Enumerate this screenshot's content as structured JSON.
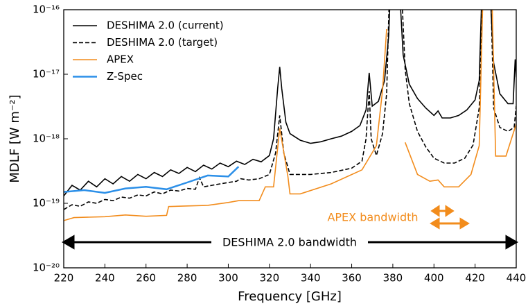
{
  "chart_data": {
    "type": "line",
    "xlabel": "Frequency [GHz]",
    "ylabel": "MDLF [W m⁻²]",
    "xlim": [
      220,
      440
    ],
    "xticks": [
      220,
      240,
      260,
      280,
      300,
      320,
      340,
      360,
      380,
      400,
      420,
      440
    ],
    "ylim": [
      1e-20,
      1e-16
    ],
    "yscale": "log",
    "yticks": [
      {
        "value": 1e-20,
        "label": "10⁻²⁰"
      },
      {
        "value": 1e-19,
        "label": "10⁻¹⁹"
      },
      {
        "value": 1e-18,
        "label": "10⁻¹⁸"
      },
      {
        "value": 1e-17,
        "label": "10⁻¹⁷"
      },
      {
        "value": 1e-16,
        "label": "10⁻¹⁶"
      }
    ],
    "legend": "upper left",
    "annotations": [
      "APEX bandwidth",
      "DESHIMA 2.0 bandwidth"
    ],
    "series": [
      {
        "name": "DESHIMA 2.0 (current)",
        "color": "#000000",
        "dash": "solid",
        "x": [
          220,
          224,
          228,
          232,
          236,
          240,
          244,
          248,
          252,
          256,
          260,
          264,
          268,
          272,
          276,
          280,
          284,
          288,
          292,
          296,
          300,
          304,
          308,
          312,
          316,
          320,
          322,
          324,
          325,
          326,
          328,
          330,
          335,
          340,
          345,
          350,
          355,
          360,
          364,
          367,
          368.5,
          370,
          373,
          376,
          378,
          379,
          383,
          385,
          388,
          392,
          396,
          400,
          402,
          404,
          408,
          412,
          416,
          420,
          422,
          423.5,
          427,
          429,
          432,
          436,
          438.5,
          439.5,
          440
        ],
        "values": [
          1.3e-19,
          1.9e-19,
          1.6e-19,
          2.2e-19,
          1.8e-19,
          2.4e-19,
          2e-19,
          2.6e-19,
          2.2e-19,
          2.8e-19,
          2.4e-19,
          3e-19,
          2.6e-19,
          3.3e-19,
          2.9e-19,
          3.6e-19,
          3.1e-19,
          3.9e-19,
          3.4e-19,
          4.2e-19,
          3.7e-19,
          4.5e-19,
          4e-19,
          4.8e-19,
          4.4e-19,
          5.5e-19,
          1e-18,
          6e-18,
          1.3e-17,
          6e-18,
          1.8e-18,
          1.2e-18,
          9.5e-19,
          8.5e-19,
          9e-19,
          1e-18,
          1.1e-18,
          1.3e-18,
          1.6e-18,
          2.8e-18,
          1.05e-17,
          3.2e-18,
          3.8e-18,
          8e-18,
          4e-17,
          3e-16,
          3e-16,
          2e-17,
          7e-18,
          4.2e-18,
          3e-18,
          2.3e-18,
          2.7e-18,
          2.1e-18,
          2.1e-18,
          2.3e-18,
          2.8e-18,
          4e-18,
          8e-18,
          3e-16,
          3e-16,
          1.5e-17,
          5e-18,
          3.5e-18,
          3.5e-18,
          1.7e-17,
          9e-18
        ]
      },
      {
        "name": "DESHIMA 2.0 (target)",
        "color": "#000000",
        "dash": "dashed",
        "x": [
          220,
          224,
          228,
          232,
          236,
          240,
          244,
          248,
          252,
          256,
          260,
          264,
          268,
          272,
          276,
          280,
          284,
          286,
          288,
          292,
          296,
          300,
          304,
          306,
          310,
          315,
          320,
          323,
          325,
          327,
          330,
          340,
          350,
          360,
          365,
          367,
          368.5,
          369.5,
          372,
          375,
          377,
          378.5,
          384,
          386,
          388,
          392,
          396,
          400,
          405,
          410,
          415,
          419,
          422,
          424,
          427.5,
          429,
          432,
          436,
          439,
          440
        ],
        "values": [
          8e-20,
          9.5e-20,
          9e-20,
          1.05e-19,
          1e-19,
          1.15e-19,
          1.1e-19,
          1.25e-19,
          1.2e-19,
          1.35e-19,
          1.3e-19,
          1.5e-19,
          1.4e-19,
          1.6e-19,
          1.55e-19,
          1.7e-19,
          1.65e-19,
          2.5e-19,
          1.8e-19,
          1.9e-19,
          2e-19,
          2.1e-19,
          2.2e-19,
          2.4e-19,
          2.3e-19,
          2.4e-19,
          2.8e-19,
          6e-19,
          2.3e-18,
          6e-19,
          2.8e-19,
          2.8e-19,
          3e-19,
          3.5e-19,
          4.5e-19,
          1e-18,
          5.5e-18,
          1e-18,
          5.5e-19,
          1.2e-18,
          5e-18,
          3e-16,
          3e-16,
          1.2e-17,
          3.5e-18,
          1.3e-18,
          7.5e-19,
          5e-19,
          4.2e-19,
          4.2e-19,
          5e-19,
          8e-19,
          3e-18,
          3e-16,
          3e-16,
          3e-18,
          1.5e-18,
          1.3e-18,
          1.5e-18,
          3.2e-18
        ]
      },
      {
        "name": "APEX",
        "color": "#f28c1c",
        "dash": "solid",
        "x": [
          220,
          225,
          240,
          250,
          260,
          270,
          271,
          290,
          300,
          305,
          315,
          318,
          322,
          325,
          329,
          330,
          335,
          350,
          365,
          372,
          375,
          377,
          381,
          386,
          392,
          398,
          402,
          405,
          412,
          418,
          422,
          424,
          428,
          430,
          435,
          440
        ],
        "values": [
          5.4e-20,
          6e-20,
          6.2e-20,
          6.6e-20,
          6.3e-20,
          6.5e-20,
          8.9e-20,
          9.3e-20,
          1.03e-19,
          1.1e-19,
          1.1e-19,
          1.8e-19,
          1.8e-19,
          1.45e-18,
          2.6e-19,
          1.4e-19,
          1.4e-19,
          2e-19,
          3.3e-19,
          7.8e-19,
          5.7e-18,
          5e-17,
          null,
          8.8e-19,
          2.8e-19,
          2.2e-19,
          2.3e-19,
          1.8e-19,
          1.8e-19,
          2.8e-19,
          7.8e-19,
          3e-16,
          3e-16,
          5.4e-19,
          5.4e-19,
          1.7e-18
        ]
      },
      {
        "name": "Z-Spec",
        "color": "#2b8fe8",
        "dash": "solid",
        "x": [
          220,
          230,
          240,
          250,
          260,
          270,
          280,
          290,
          300,
          305
        ],
        "values": [
          1.5e-19,
          1.6e-19,
          1.45e-19,
          1.7e-19,
          1.8e-19,
          1.65e-19,
          2.1e-19,
          2.7e-19,
          2.6e-19,
          3.7e-19
        ]
      }
    ]
  }
}
